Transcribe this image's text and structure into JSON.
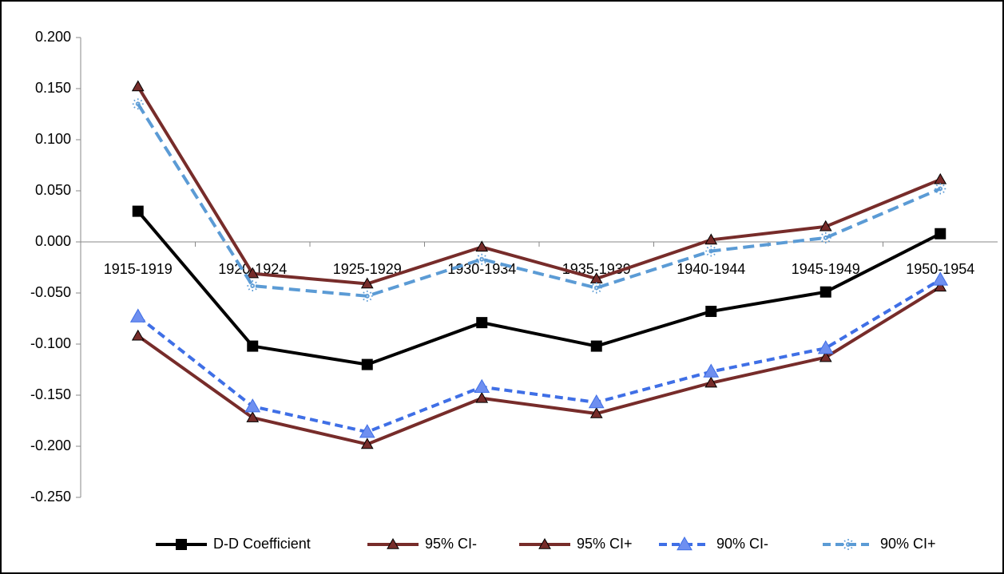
{
  "chart_data": {
    "type": "line",
    "categories": [
      "1915-1919",
      "1920-1924",
      "1925-1929",
      "1930-1934",
      "1935-1939",
      "1940-1944",
      "1945-1949",
      "1950-1954"
    ],
    "series": [
      {
        "name": "D-D Coefficient",
        "color": "#000000",
        "marker": "square",
        "dashed": false,
        "values": [
          0.03,
          -0.102,
          -0.12,
          -0.079,
          -0.102,
          -0.068,
          -0.049,
          0.008
        ]
      },
      {
        "name": "95% CI-",
        "color": "#772C2A",
        "marker": "triangle",
        "dashed": false,
        "values": [
          -0.092,
          -0.172,
          -0.198,
          -0.153,
          -0.168,
          -0.138,
          -0.113,
          -0.044
        ]
      },
      {
        "name": "95% CI+",
        "color": "#772C2A",
        "marker": "triangle",
        "dashed": false,
        "values": [
          0.152,
          -0.031,
          -0.041,
          -0.005,
          -0.036,
          0.002,
          0.015,
          0.061
        ]
      },
      {
        "name": "90% CI-",
        "color": "#3F6FE6",
        "marker": "triangle",
        "dashed": true,
        "values": [
          -0.073,
          -0.161,
          -0.186,
          -0.142,
          -0.157,
          -0.127,
          -0.104,
          -0.037
        ]
      },
      {
        "name": "90% CI+",
        "color": "#5B9BD5",
        "marker": "star",
        "dashed": true,
        "values": [
          0.135,
          -0.043,
          -0.053,
          -0.017,
          -0.045,
          -0.009,
          0.004,
          0.052
        ]
      }
    ],
    "ylim": [
      -0.25,
      0.2
    ],
    "yticks": [
      {
        "value": -0.25,
        "label": "-0.250"
      },
      {
        "value": -0.2,
        "label": "-0.200"
      },
      {
        "value": -0.15,
        "label": "-0.150"
      },
      {
        "value": -0.1,
        "label": "-0.100"
      },
      {
        "value": -0.05,
        "label": "-0.050"
      },
      {
        "value": 0,
        "label": "0.000"
      },
      {
        "value": 0.05,
        "label": "0.050"
      },
      {
        "value": 0.1,
        "label": "0.100"
      },
      {
        "value": 0.15,
        "label": "0.150"
      },
      {
        "value": 0.2,
        "label": "0.200"
      }
    ],
    "grid": false,
    "legend": "bottom"
  }
}
